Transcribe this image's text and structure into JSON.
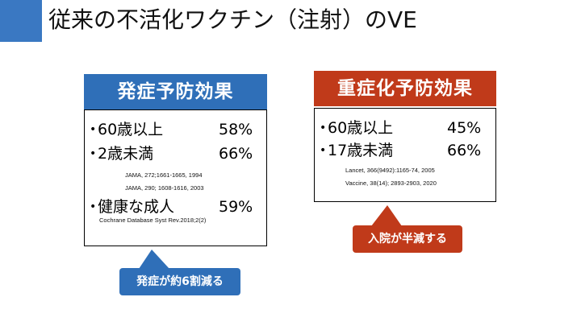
{
  "slide": {
    "title": "従来の不活化ワクチン（注射）のVE"
  },
  "colors": {
    "accent_blue": "#3a78c2",
    "head_blue": "#2f6fb8",
    "head_red": "#c03a1a",
    "callout_blue": "#2f6fb8",
    "callout_red": "#c03a1a"
  },
  "left_panel": {
    "heading": "発症予防効果",
    "rows": [
      {
        "bullet": "•",
        "label": "60歳以上",
        "value": "58%"
      },
      {
        "bullet": "•",
        "label": "2歳未満",
        "value": "66%"
      },
      {
        "bullet": "•",
        "label": "健康な成人",
        "value": "59%"
      }
    ],
    "citations": [
      "JAMA, 272;1661-1665, 1994",
      "JAMA, 290; 1608-1616, 2003",
      "Cochrane Database Syst Rev.2018;2(2)"
    ],
    "callout": "発症が約6割減る"
  },
  "right_panel": {
    "heading": "重症化予防効果",
    "rows": [
      {
        "bullet": "•",
        "label": "60歳以上",
        "value": "45%"
      },
      {
        "bullet": "•",
        "label": "17歳未満",
        "value": "66%"
      }
    ],
    "citations": [
      "Lancet, 366(9492):1165-74, 2005",
      "Vaccine, 38(14); 2893-2903, 2020"
    ],
    "callout": "入院が半減する"
  }
}
